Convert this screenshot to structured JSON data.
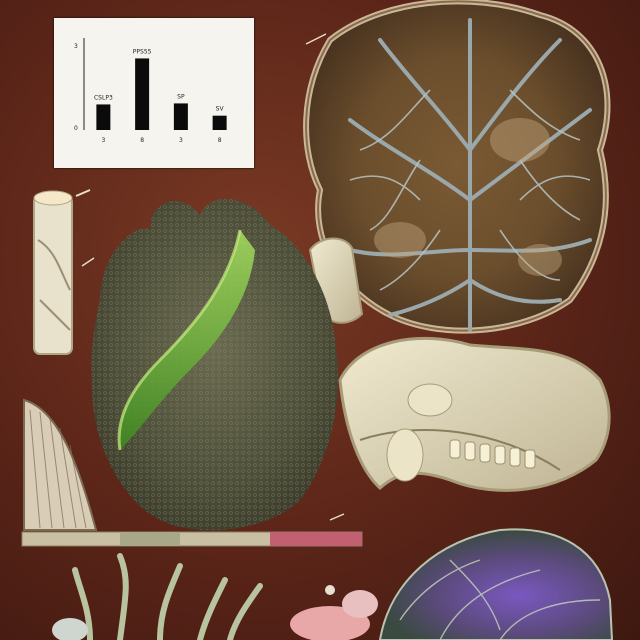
{
  "scene": {
    "description_free": true,
    "palette": {
      "background": "#5a2418",
      "chart_panel": "#f6f4ef",
      "leaf_vein": "#8a9aa0",
      "leaf_fill": "#6b5a36",
      "brain_mesh": "#4a4a38",
      "brain_glow": "#6fc23a",
      "bone": "#e3dcc0",
      "coral_purple": "#6a4aa0",
      "strip_pink": "#c06070"
    },
    "icons": [
      "leaf-cross-section-icon",
      "brain-mesh-icon",
      "jaw-bone-icon",
      "coral-purple-icon",
      "scroll-tube-icon",
      "plant-stem-icon"
    ]
  },
  "chart_data": {
    "type": "bar",
    "categories": [
      "3",
      "8",
      "3",
      "8"
    ],
    "values": [
      25,
      70,
      26,
      14
    ],
    "bar_labels": [
      "CSLP3",
      "PPS55",
      "SP",
      "SV"
    ],
    "xlabel": "",
    "ylabel": "",
    "ylim": [
      0,
      90
    ],
    "grid": false,
    "legend": "none",
    "y_ticks": [
      "3",
      "0"
    ],
    "bar_color": "#0b0b0b"
  }
}
